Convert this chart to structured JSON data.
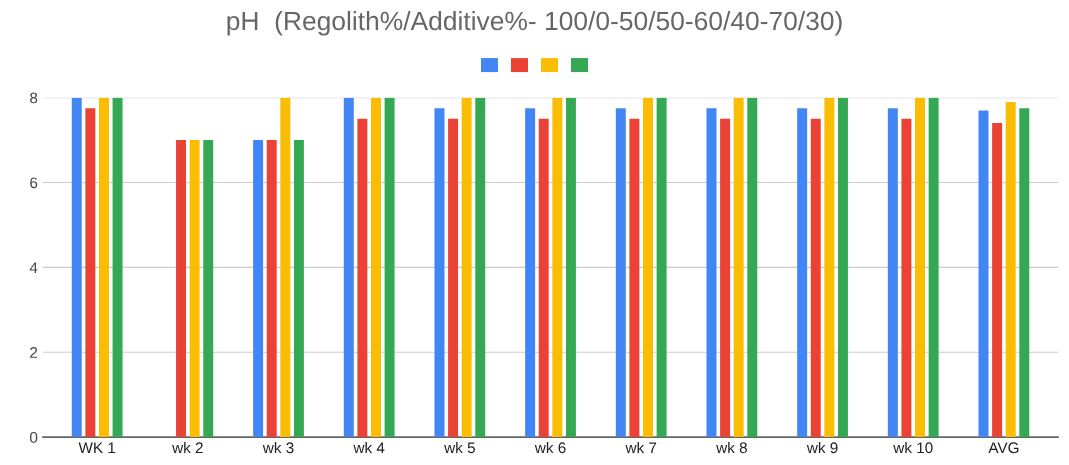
{
  "chart_data": {
    "type": "bar",
    "title": "pH  (Regolith%/Additive%- 100/0-50/50-60/40-70/30)",
    "categories": [
      "WK 1",
      "wk 2",
      "wk 3",
      "wk 4",
      "wk 5",
      "wk 6",
      "wk 7",
      "wk 8",
      "wk 9",
      "wk 10",
      "AVG"
    ],
    "series": [
      {
        "color": "#4285f4",
        "values": [
          8,
          null,
          7,
          8,
          7.75,
          7.75,
          7.75,
          7.75,
          7.75,
          7.75,
          7.7
        ]
      },
      {
        "color": "#ea4335",
        "values": [
          7.75,
          7,
          7,
          7.5,
          7.5,
          7.5,
          7.5,
          7.5,
          7.5,
          7.5,
          7.4
        ]
      },
      {
        "color": "#fbbc04",
        "values": [
          8,
          7,
          8,
          8,
          8,
          8,
          8,
          8,
          8,
          8,
          7.9
        ]
      },
      {
        "color": "#34a853",
        "values": [
          8,
          7,
          7,
          8,
          8,
          8,
          8,
          8,
          8,
          8,
          7.75
        ]
      }
    ],
    "ylim": [
      0,
      8
    ],
    "yticks": [
      0,
      2,
      4,
      6,
      8
    ],
    "grid": "y"
  }
}
